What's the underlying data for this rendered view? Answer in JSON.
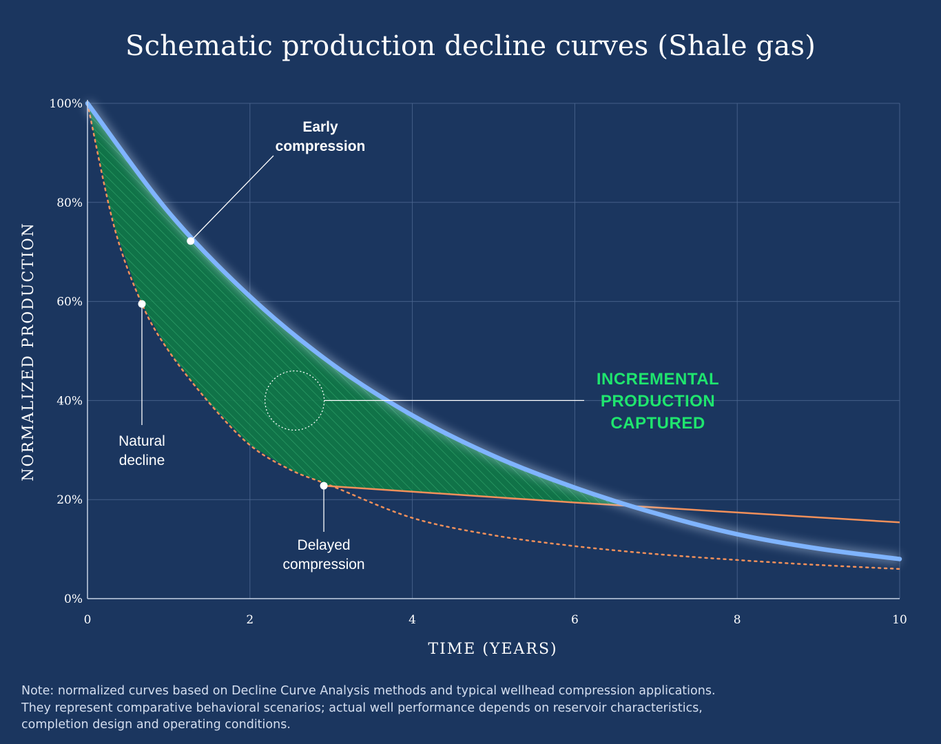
{
  "title": "Schematic production decline curves (Shale gas)",
  "colors": {
    "background": "#1b365f",
    "grid": "#4c6790",
    "compression_curve": "#7fb4ff",
    "natural_decline": "#f2905a",
    "incremental_fill": "#0f7a45",
    "incremental_text": "#1fe56e",
    "text": "#ffffff"
  },
  "chart_data": {
    "type": "line",
    "title": "Schematic production decline curves (Shale gas)",
    "xlabel": "TIME (YEARS)",
    "ylabel": "NORMALIZED PRODUCTION",
    "xlim": [
      0,
      10
    ],
    "ylim": [
      0,
      100
    ],
    "x_ticks": [
      "0",
      "2",
      "4",
      "6",
      "8",
      "10"
    ],
    "x_tick_values": [
      0,
      2,
      4,
      6,
      8,
      10
    ],
    "y_ticks": [
      "0%",
      "20%",
      "40%",
      "60%",
      "80%",
      "100%"
    ],
    "y_tick_values": [
      0,
      20,
      40,
      60,
      80,
      100
    ],
    "grid": true,
    "series": [
      {
        "name": "Early compression",
        "style": "solid thick glow",
        "x": [
          0,
          1,
          2,
          3,
          4,
          5,
          6,
          7,
          8,
          9,
          10
        ],
        "values": [
          100,
          78,
          61,
          47.5,
          37,
          28.8,
          22.4,
          17.2,
          13,
          10.1,
          8
        ]
      },
      {
        "name": "Natural decline",
        "style": "dotted",
        "x": [
          0,
          0.33,
          0.67,
          1,
          1.5,
          2,
          2.5,
          3,
          4,
          5,
          6,
          7,
          8,
          9,
          10
        ],
        "values": [
          100,
          75,
          59.5,
          50,
          39.5,
          31,
          26,
          22.8,
          16.3,
          12.8,
          10.6,
          9,
          7.8,
          6.8,
          6
        ]
      },
      {
        "name": "Delayed compression",
        "style": "solid",
        "x": [
          2.91,
          6,
          8,
          10
        ],
        "values": [
          22.8,
          19.4,
          17.4,
          15.4
        ]
      }
    ],
    "annotations": [
      {
        "label_lines": [
          "Early",
          "compression"
        ],
        "x": 1.27,
        "y": 72.2
      },
      {
        "label_lines": [
          "Natural",
          "decline"
        ],
        "x": 0.67,
        "y": 59.5
      },
      {
        "label_lines": [
          "Delayed",
          "compression"
        ],
        "x": 2.91,
        "y": 22.8
      },
      {
        "label_lines": [
          "INCREMENTAL",
          "PRODUCTION",
          "CAPTURED"
        ],
        "x": 2.55,
        "y": 40
      }
    ]
  },
  "note": {
    "lines": [
      "Note: normalized curves based on Decline Curve Analysis methods and typical wellhead compression applications.",
      "They represent comparative behavioral scenarios; actual well performance depends on reservoir characteristics,",
      "completion design and operating conditions."
    ]
  }
}
